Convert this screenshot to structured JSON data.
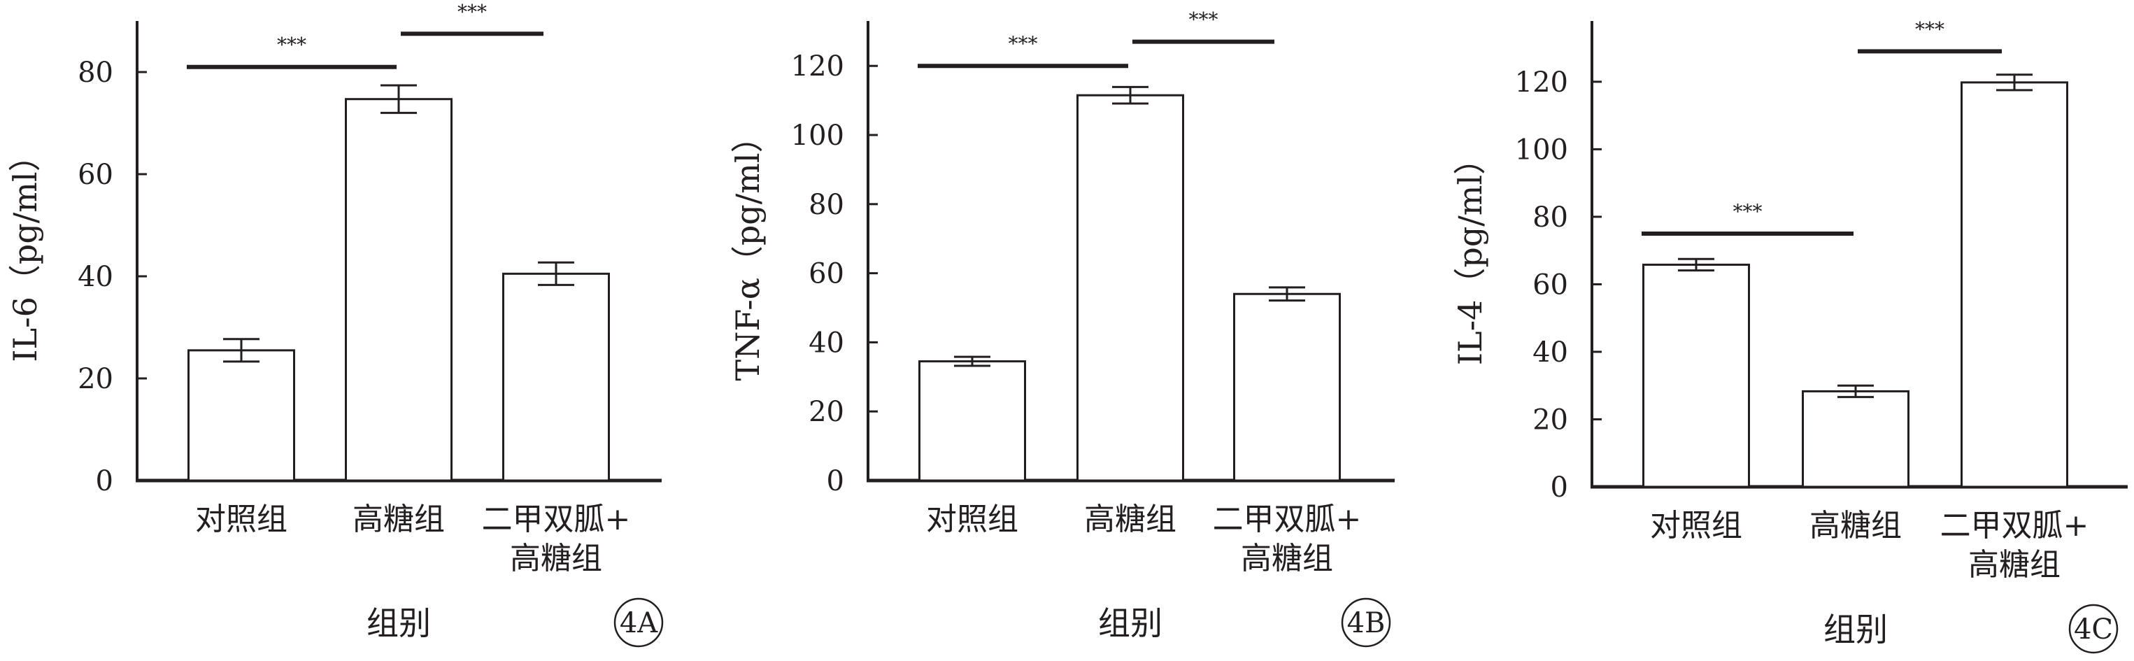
{
  "figure": {
    "colors": {
      "ink": "#231f20",
      "bar_fill": "#ffffff"
    },
    "panels": [
      {
        "tag": "4A",
        "ylabel": "IL-6（pg/ml）",
        "xlabel": "组别"
      },
      {
        "tag": "4B",
        "ylabel": "TNF-α（pg/ml）",
        "xlabel": "组别"
      },
      {
        "tag": "4C",
        "ylabel": "IL-4（pg/ml）",
        "xlabel": "组别"
      }
    ]
  },
  "chart_data": [
    {
      "type": "bar",
      "title": "",
      "xlabel": "组别",
      "ylabel": "IL-6（pg/ml）",
      "categories": [
        [
          "对照组"
        ],
        [
          "高糖组"
        ],
        [
          "二甲双胍+",
          "高糖组"
        ]
      ],
      "values": [
        25.5,
        74.7,
        40.5
      ],
      "errors": [
        2.2,
        2.7,
        2.2
      ],
      "ylim": [
        0,
        90
      ],
      "yticks": [
        0,
        20,
        40,
        60,
        80
      ],
      "significance": [
        {
          "from": 0,
          "to": 1,
          "label": "***",
          "level": 81
        },
        {
          "from": 1,
          "to": 2,
          "label": "***",
          "level": 87.5
        }
      ],
      "panel_tag": "4A"
    },
    {
      "type": "bar",
      "title": "",
      "xlabel": "组别",
      "ylabel": "TNF-α（pg/ml）",
      "categories": [
        [
          "对照组"
        ],
        [
          "高糖组"
        ],
        [
          "二甲双胍+",
          "高糖组"
        ]
      ],
      "values": [
        34.5,
        111.5,
        54.0
      ],
      "errors": [
        1.3,
        2.4,
        1.9
      ],
      "ylim": [
        0,
        133
      ],
      "yticks": [
        0,
        20,
        40,
        60,
        80,
        100,
        120
      ],
      "significance": [
        {
          "from": 0,
          "to": 1,
          "label": "***",
          "level": 120
        },
        {
          "from": 1,
          "to": 2,
          "label": "***",
          "level": 127
        }
      ],
      "panel_tag": "4B"
    },
    {
      "type": "bar",
      "title": "",
      "xlabel": "组别",
      "ylabel": "IL-4（pg/ml）",
      "categories": [
        [
          "对照组"
        ],
        [
          "高糖组"
        ],
        [
          "二甲双胍+",
          "高糖组"
        ]
      ],
      "values": [
        65.8,
        28.3,
        119.8
      ],
      "errors": [
        1.7,
        1.7,
        2.3
      ],
      "ylim": [
        0,
        138
      ],
      "yticks": [
        0,
        20,
        40,
        60,
        80,
        100,
        120
      ],
      "significance": [
        {
          "from": 0,
          "to": 1,
          "label": "***",
          "level": 75
        },
        {
          "from": 1,
          "to": 2,
          "label": "***",
          "level": 129
        }
      ],
      "panel_tag": "4C"
    }
  ]
}
